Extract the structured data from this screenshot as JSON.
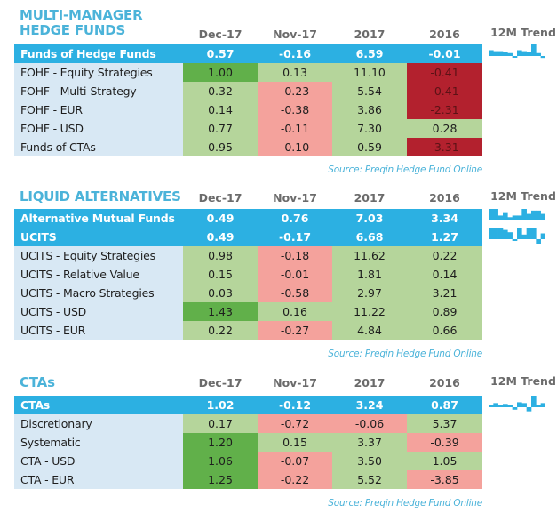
{
  "columns": [
    "Dec-17",
    "Nov-17",
    "2017",
    "2016"
  ],
  "trend_label": "12M Trend",
  "source": "Source: Preqin Hedge Fund Online",
  "colors": {
    "accent": "#2cb0e2",
    "title": "#4bb3d9",
    "label_bg": "#d8e8f4",
    "green_light": "#b5d59b",
    "green_dark": "#61b04a",
    "red_light": "#f4a29c",
    "red_dark": "#b3212e"
  },
  "sections": [
    {
      "title_line1": "MULTI-MANAGER",
      "title_line2": "HEDGE FUNDS",
      "header_rows": [
        {
          "label": "Funds of Hedge Funds",
          "values": [
            "0.57",
            "-0.16",
            "6.59",
            "-0.01"
          ],
          "trend": [
            0.6,
            0.5,
            0.5,
            0.4,
            0.3,
            -0.1,
            0.6,
            0.5,
            0.4,
            1.2,
            0.3,
            -0.2
          ]
        }
      ],
      "rows": [
        {
          "label": "FOHF - Equity Strategies",
          "values": [
            "1.00",
            "0.13",
            "11.10",
            "-0.41"
          ],
          "shades": [
            "g-d",
            "g-l",
            "g-l",
            "r-d"
          ]
        },
        {
          "label": "FOHF - Multi-Strategy",
          "values": [
            "0.32",
            "-0.23",
            "5.54",
            "-0.41"
          ],
          "shades": [
            "g-l",
            "r-l",
            "g-l",
            "r-d"
          ]
        },
        {
          "label": "FOHF - EUR",
          "values": [
            "0.14",
            "-0.38",
            "3.86",
            "-2.31"
          ],
          "shades": [
            "g-l",
            "r-l",
            "g-l",
            "r-d"
          ]
        },
        {
          "label": "FOHF - USD",
          "values": [
            "0.77",
            "-0.11",
            "7.30",
            "0.28"
          ],
          "shades": [
            "g-l",
            "r-l",
            "g-l",
            "g-l"
          ]
        },
        {
          "label": "Funds of CTAs",
          "values": [
            "0.95",
            "-0.10",
            "0.59",
            "-3.31"
          ],
          "shades": [
            "g-l",
            "r-l",
            "g-l",
            "r-d"
          ]
        }
      ]
    },
    {
      "title_line1": "LIQUID ALTERNATIVES",
      "header_rows": [
        {
          "label": "Alternative Mutual Funds",
          "values": [
            "0.49",
            "0.76",
            "7.03",
            "3.34"
          ],
          "trend": [
            1.4,
            1.4,
            0.6,
            0.9,
            0.4,
            0.6,
            0.6,
            1.4,
            0.8,
            1.2,
            1.2,
            0.8
          ]
        },
        {
          "label": "UCITS",
          "values": [
            "0.49",
            "-0.17",
            "6.68",
            "1.27"
          ],
          "trend": [
            1.0,
            1.0,
            1.0,
            0.8,
            0.6,
            -0.1,
            1.0,
            0.4,
            1.0,
            1.0,
            -0.5,
            0.5
          ]
        }
      ],
      "rows": [
        {
          "label": "UCITS - Equity Strategies",
          "values": [
            "0.98",
            "-0.18",
            "11.62",
            "0.22"
          ],
          "shades": [
            "g-l",
            "r-l",
            "g-l",
            "g-l"
          ]
        },
        {
          "label": "UCITS - Relative Value",
          "values": [
            "0.15",
            "-0.01",
            "1.81",
            "0.14"
          ],
          "shades": [
            "g-l",
            "r-l",
            "g-l",
            "g-l"
          ]
        },
        {
          "label": "UCITS - Macro Strategies",
          "values": [
            "0.03",
            "-0.58",
            "2.97",
            "3.21"
          ],
          "shades": [
            "g-l",
            "r-l",
            "g-l",
            "g-l"
          ]
        },
        {
          "label": "UCITS - USD",
          "values": [
            "1.43",
            "0.16",
            "11.22",
            "0.89"
          ],
          "shades": [
            "g-d",
            "g-l",
            "g-l",
            "g-l"
          ]
        },
        {
          "label": "UCITS - EUR",
          "values": [
            "0.22",
            "-0.27",
            "4.84",
            "0.66"
          ],
          "shades": [
            "g-l",
            "r-l",
            "g-l",
            "g-l"
          ]
        }
      ]
    },
    {
      "title_line1": "CTAs",
      "header_rows": [
        {
          "label": "CTAs",
          "values": [
            "1.02",
            "-0.12",
            "3.24",
            "0.87"
          ],
          "trend": [
            0.3,
            0.5,
            0.2,
            0.4,
            0.3,
            -0.3,
            0.6,
            0.5,
            -0.5,
            1.4,
            0.2,
            0.5
          ]
        }
      ],
      "rows": [
        {
          "label": "Discretionary",
          "values": [
            "0.17",
            "-0.72",
            "-0.06",
            "5.37"
          ],
          "shades": [
            "g-l",
            "r-l",
            "r-l",
            "g-l"
          ]
        },
        {
          "label": "Systematic",
          "values": [
            "1.20",
            "0.15",
            "3.37",
            "-0.39"
          ],
          "shades": [
            "g-d",
            "g-l",
            "g-l",
            "r-l"
          ]
        },
        {
          "label": "CTA - USD",
          "values": [
            "1.06",
            "-0.07",
            "3.50",
            "1.05"
          ],
          "shades": [
            "g-d",
            "r-l",
            "g-l",
            "g-l"
          ]
        },
        {
          "label": "CTA - EUR",
          "values": [
            "1.25",
            "-0.22",
            "5.52",
            "-3.85"
          ],
          "shades": [
            "g-d",
            "r-l",
            "g-l",
            "r-l"
          ]
        }
      ]
    }
  ]
}
